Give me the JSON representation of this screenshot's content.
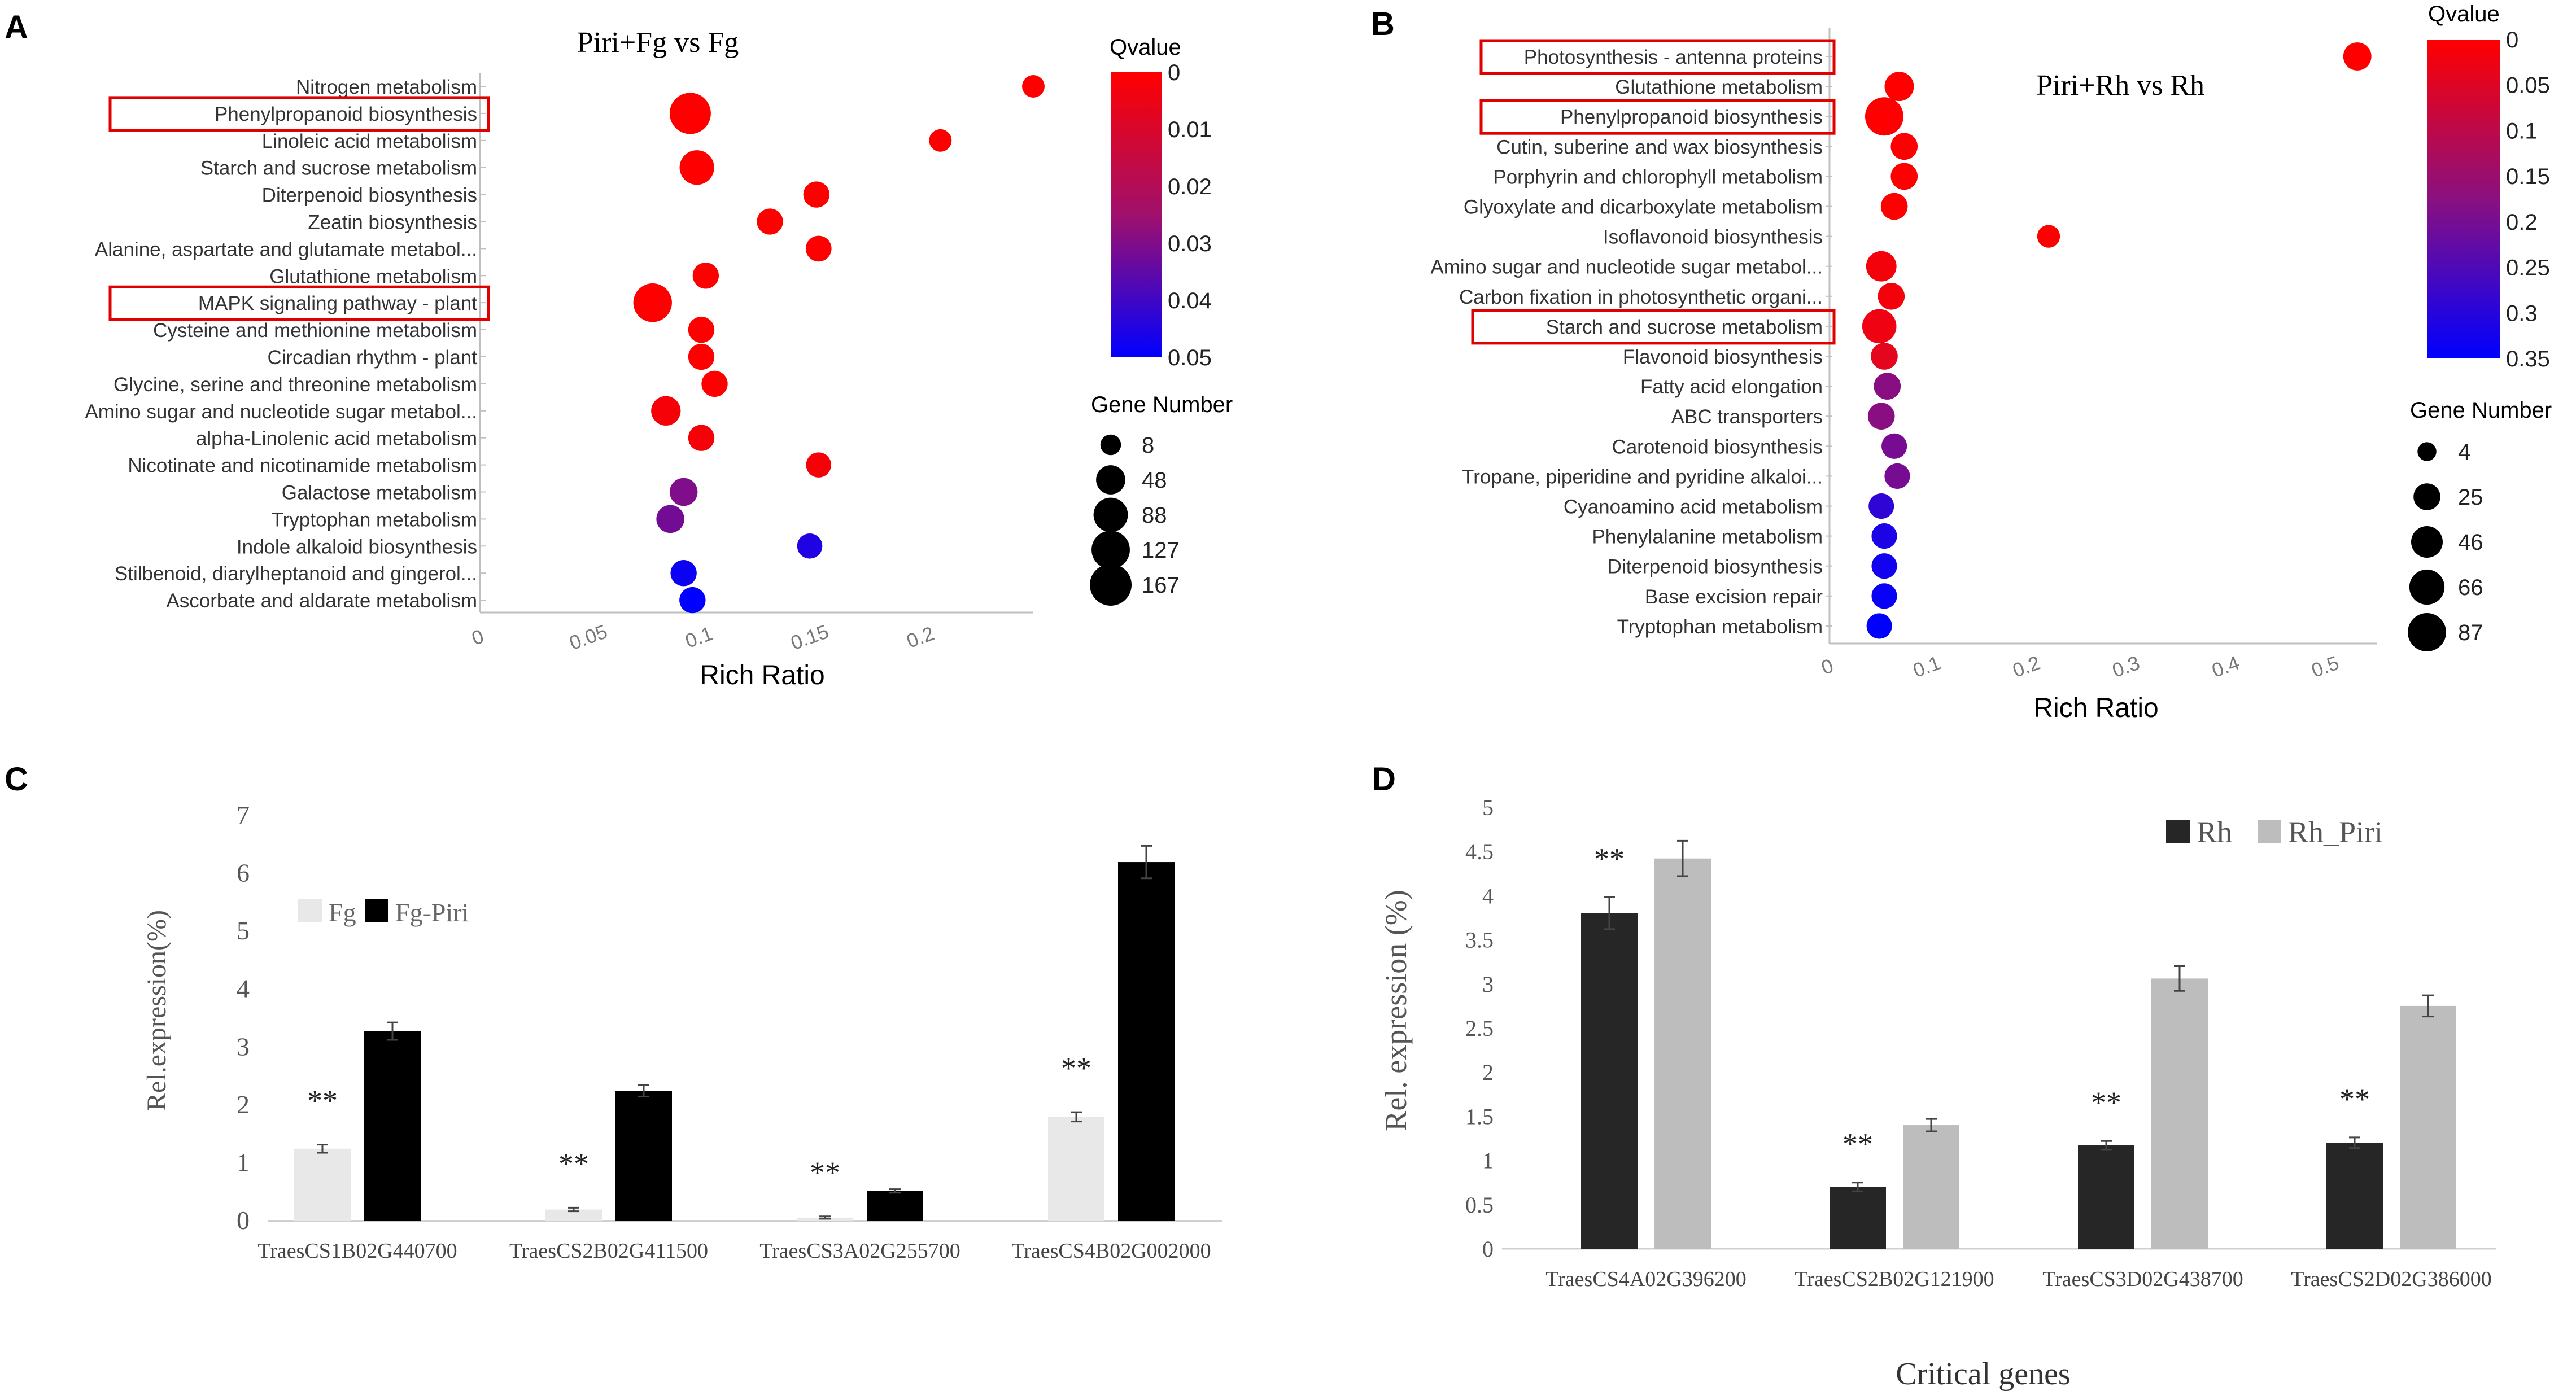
{
  "panel_letters": [
    "A",
    "B",
    "C",
    "D"
  ],
  "colors": {
    "qvalue_high": "#ff0000",
    "qvalue_mid": "#80107a",
    "qvalue_low": "#0000ff",
    "highlight_box": "#e00000",
    "fg_bar": "#e8e8e8",
    "fg_piri_bar": "#000000",
    "rh_bar": "#262626",
    "rh_piri_bar": "#bdbdbd"
  },
  "chart_data": [
    {
      "panel": "A",
      "type": "scatter",
      "title": "Piri+Fg vs Fg",
      "xlabel": "Rich Ratio",
      "ylabel": "",
      "xlim": [
        0,
        0.25
      ],
      "x_ticks": [
        "0",
        "0.05",
        "0.1",
        "0.15",
        "0.2"
      ],
      "x_tick_values": [
        0,
        0.05,
        0.1,
        0.15,
        0.2
      ],
      "color_legend": {
        "title": "Qvalue",
        "ticks": [
          "0",
          "0.01",
          "0.02",
          "0.03",
          "0.04",
          "0.05"
        ],
        "range": [
          0,
          0.05
        ]
      },
      "size_legend": {
        "title": "Gene Number",
        "labels": [
          "8",
          "48",
          "88",
          "127",
          "167"
        ],
        "values": [
          8,
          48,
          88,
          127,
          167
        ],
        "max": 167
      },
      "highlighted": [
        "Phenylpropanoid biosynthesis",
        "MAPK signaling pathway - plant"
      ],
      "pathways": [
        "Nitrogen metabolism",
        "Phenylpropanoid biosynthesis",
        "Linoleic acid metabolism",
        "Starch and sucrose metabolism",
        "Diterpenoid biosynthesis",
        "Zeatin biosynthesis",
        "Alanine, aspartate and glutamate metabol...",
        "Glutathione metabolism",
        "MAPK signaling pathway - plant",
        "Cysteine and methionine metabolism",
        "Circadian rhythm - plant",
        "Glycine, serine and threonine metabolism",
        "Amino sugar and nucleotide sugar metabol...",
        "alpha-Linolenic acid metabolism",
        "Nicotinate and nicotinamide metabolism",
        "Galactose metabolism",
        "Tryptophan metabolism",
        "Indole alkaloid biosynthesis",
        "Stilbenoid, diarylheptanoid and gingerol...",
        "Ascorbate and aldarate metabolism"
      ],
      "rich_ratio": [
        0.25,
        0.095,
        0.208,
        0.098,
        0.152,
        0.131,
        0.153,
        0.102,
        0.078,
        0.1,
        0.1,
        0.106,
        0.084,
        0.1,
        0.153,
        0.092,
        0.086,
        0.149,
        0.092,
        0.096
      ],
      "gene_number": [
        14,
        160,
        14,
        90,
        30,
        30,
        28,
        30,
        130,
        30,
        30,
        30,
        50,
        30,
        25,
        40,
        40,
        25,
        30,
        30
      ],
      "qvalue": [
        0.0,
        0.0,
        0.0,
        0.0,
        0.0,
        0.0,
        0.0,
        0.0,
        0.0,
        0.0,
        0.0,
        0.0,
        0.002,
        0.002,
        0.002,
        0.03,
        0.032,
        0.045,
        0.048,
        0.05
      ]
    },
    {
      "panel": "B",
      "type": "scatter",
      "title": "Piri+Rh vs Rh",
      "xlabel": "Rich Ratio",
      "ylabel": "",
      "xlim": [
        0,
        0.55
      ],
      "x_ticks": [
        "0",
        "0.1",
        "0.2",
        "0.3",
        "0.4",
        "0.5"
      ],
      "x_tick_values": [
        0,
        0.1,
        0.2,
        0.3,
        0.4,
        0.5
      ],
      "color_legend": {
        "title": "Qvalue",
        "ticks": [
          "0",
          "0.05",
          "0.1",
          "0.15",
          "0.2",
          "0.25",
          "0.3",
          "0.35"
        ],
        "range": [
          0,
          0.35
        ]
      },
      "size_legend": {
        "title": "Gene Number",
        "labels": [
          "4",
          "25",
          "46",
          "66",
          "87"
        ],
        "values": [
          4,
          25,
          46,
          66,
          87
        ],
        "max": 87
      },
      "highlighted": [
        "Photosynthesis - antenna proteins",
        "Phenylpropanoid biosynthesis",
        "Starch and sucrose metabolism"
      ],
      "pathways": [
        "Photosynthesis - antenna proteins",
        "Glutathione metabolism",
        "Phenylpropanoid biosynthesis",
        "Cutin, suberine and wax biosynthesis",
        "Porphyrin and chlorophyll metabolism",
        "Glyoxylate and dicarboxylate metabolism",
        "Isoflavonoid biosynthesis",
        "Amino sugar and nucleotide sugar metabol...",
        "Carbon fixation in photosynthetic organi...",
        "Starch and sucrose metabolism",
        "Flavonoid biosynthesis",
        "Fatty acid elongation",
        "ABC transporters",
        "Carotenoid biosynthesis",
        "Tropane, piperidine and pyridine alkaloi...",
        "Cyanoamino acid metabolism",
        "Phenylalanine metabolism",
        "Diterpenoid biosynthesis",
        "Base excision repair",
        "Tryptophan metabolism"
      ],
      "rich_ratio": [
        0.53,
        0.07,
        0.055,
        0.075,
        0.075,
        0.065,
        0.22,
        0.052,
        0.062,
        0.05,
        0.055,
        0.058,
        0.052,
        0.065,
        0.068,
        0.052,
        0.055,
        0.055,
        0.055,
        0.05
      ],
      "gene_number": [
        30,
        35,
        87,
        25,
        25,
        25,
        12,
        40,
        25,
        60,
        25,
        25,
        25,
        20,
        20,
        20,
        20,
        20,
        20,
        20
      ],
      "qvalue": [
        0.0,
        0.0,
        0.0,
        0.0,
        0.0,
        0.0,
        0.0,
        0.02,
        0.02,
        0.03,
        0.05,
        0.2,
        0.2,
        0.22,
        0.22,
        0.3,
        0.32,
        0.33,
        0.34,
        0.35
      ]
    },
    {
      "panel": "C",
      "type": "bar",
      "title": "",
      "xlabel": "",
      "ylabel": "Rel.expression(%)",
      "ylim": [
        0,
        7
      ],
      "y_ticks": [
        "0",
        "1",
        "2",
        "3",
        "4",
        "5",
        "6",
        "7"
      ],
      "categories": [
        "TraesCS1B02G440700",
        "TraesCS2B02G411500",
        "TraesCS3A02G255700",
        "TraesCS4B02G002000"
      ],
      "series": [
        {
          "name": "Fg",
          "values": [
            1.25,
            0.2,
            0.06,
            1.8
          ],
          "errors": [
            0.07,
            0.03,
            0.02,
            0.08
          ]
        },
        {
          "name": "Fg-Piri",
          "values": [
            3.28,
            2.25,
            0.52,
            6.2
          ],
          "errors": [
            0.15,
            0.1,
            0.03,
            0.28
          ]
        }
      ],
      "annotations": [
        "**",
        "**",
        "**",
        "**"
      ]
    },
    {
      "panel": "D",
      "type": "bar",
      "title": "",
      "xlabel": "Critical genes",
      "ylabel": "Rel. expression (%)",
      "ylim": [
        0,
        5
      ],
      "y_ticks": [
        "0",
        "0.5",
        "1",
        "1.5",
        "2",
        "2.5",
        "3",
        "3.5",
        "4",
        "4.5",
        "5"
      ],
      "categories": [
        "TraesCS4A02G396200",
        "TraesCS2B02G121900",
        "TraesCS3D02G438700",
        "TraesCS2D02G386000"
      ],
      "series": [
        {
          "name": "Rh",
          "values": [
            3.8,
            0.7,
            1.17,
            1.2
          ],
          "errors": [
            0.18,
            0.05,
            0.05,
            0.06
          ]
        },
        {
          "name": "Rh_Piri",
          "values": [
            4.42,
            1.4,
            3.06,
            2.75
          ],
          "errors": [
            0.2,
            0.07,
            0.14,
            0.12
          ]
        }
      ],
      "annotations": [
        "**",
        "**",
        "**",
        "**"
      ]
    }
  ]
}
